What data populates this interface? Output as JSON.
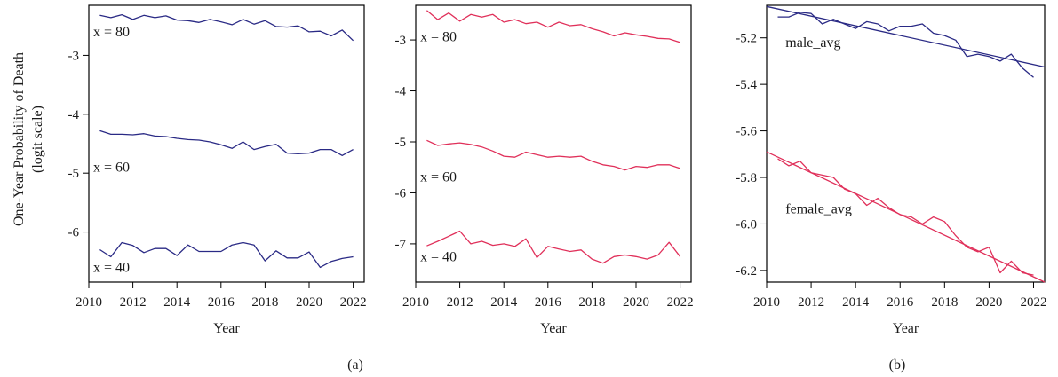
{
  "figure": {
    "ylabel_line1": "One-Year Probability of Death",
    "ylabel_line2": "(logit scale)",
    "caption_a": "(a)",
    "caption_b": "(b)"
  },
  "colors": {
    "male": "#2a2a85",
    "female": "#e0305a",
    "axis": "#000000"
  },
  "chart_data": [
    {
      "type": "line",
      "xlabel": "Year",
      "xlim": [
        2010,
        2022.5
      ],
      "ylim": [
        -6.85,
        -2.15
      ],
      "xticks": [
        2010,
        2012,
        2014,
        2016,
        2018,
        2020,
        2022
      ],
      "yticks": [
        -3,
        -4,
        -5,
        -6
      ],
      "ytick_labels": [
        "-3",
        "-4",
        "-5",
        "-6"
      ],
      "color_key": "male",
      "x": [
        2010.5,
        2011,
        2011.5,
        2012,
        2012.5,
        2013,
        2013.5,
        2014,
        2014.5,
        2015,
        2015.5,
        2016,
        2016.5,
        2017,
        2017.5,
        2018,
        2018.5,
        2019,
        2019.5,
        2020,
        2020.5,
        2021,
        2021.5,
        2022
      ],
      "series": [
        {
          "name": "x = 80",
          "label_x": 2010.2,
          "label_y": -2.6,
          "values": [
            -2.32,
            -2.36,
            -2.31,
            -2.39,
            -2.32,
            -2.36,
            -2.33,
            -2.4,
            -2.41,
            -2.44,
            -2.39,
            -2.43,
            -2.48,
            -2.39,
            -2.47,
            -2.41,
            -2.51,
            -2.52,
            -2.5,
            -2.6,
            -2.59,
            -2.67,
            -2.57,
            -2.75
          ]
        },
        {
          "name": "x = 60",
          "label_x": 2010.2,
          "label_y": -4.9,
          "values": [
            -4.28,
            -4.34,
            -4.34,
            -4.35,
            -4.33,
            -4.37,
            -4.38,
            -4.41,
            -4.43,
            -4.44,
            -4.47,
            -4.52,
            -4.58,
            -4.47,
            -4.6,
            -4.55,
            -4.51,
            -4.66,
            -4.67,
            -4.66,
            -4.6,
            -4.6,
            -4.7,
            -4.6
          ]
        },
        {
          "name": "x = 40",
          "label_x": 2010.2,
          "label_y": -6.6,
          "values": [
            -6.3,
            -6.42,
            -6.18,
            -6.23,
            -6.35,
            -6.28,
            -6.28,
            -6.4,
            -6.22,
            -6.33,
            -6.33,
            -6.33,
            -6.22,
            -6.18,
            -6.22,
            -6.49,
            -6.32,
            -6.44,
            -6.44,
            -6.34,
            -6.6,
            -6.5,
            -6.45,
            -6.42
          ]
        }
      ]
    },
    {
      "type": "line",
      "xlabel": "Year",
      "xlim": [
        2010,
        2022.5
      ],
      "ylim": [
        -7.75,
        -2.32
      ],
      "xticks": [
        2010,
        2012,
        2014,
        2016,
        2018,
        2020,
        2022
      ],
      "yticks": [
        -3,
        -4,
        -5,
        -6,
        -7
      ],
      "ytick_labels": [
        "-3",
        "-4",
        "-5",
        "-6",
        "-7"
      ],
      "color_key": "female",
      "x": [
        2010.5,
        2011,
        2011.5,
        2012,
        2012.5,
        2013,
        2013.5,
        2014,
        2014.5,
        2015,
        2015.5,
        2016,
        2016.5,
        2017,
        2017.5,
        2018,
        2018.5,
        2019,
        2019.5,
        2020,
        2020.5,
        2021,
        2021.5,
        2022
      ],
      "series": [
        {
          "name": "x = 80",
          "label_x": 2010.2,
          "label_y": -2.94,
          "values": [
            -2.42,
            -2.6,
            -2.47,
            -2.63,
            -2.5,
            -2.55,
            -2.5,
            -2.65,
            -2.6,
            -2.68,
            -2.65,
            -2.75,
            -2.65,
            -2.72,
            -2.7,
            -2.78,
            -2.84,
            -2.92,
            -2.86,
            -2.9,
            -2.93,
            -2.97,
            -2.98,
            -3.05
          ]
        },
        {
          "name": "x = 60",
          "label_x": 2010.2,
          "label_y": -5.69,
          "values": [
            -4.97,
            -5.07,
            -5.04,
            -5.02,
            -5.05,
            -5.1,
            -5.18,
            -5.28,
            -5.3,
            -5.2,
            -5.25,
            -5.3,
            -5.28,
            -5.3,
            -5.28,
            -5.38,
            -5.45,
            -5.48,
            -5.55,
            -5.48,
            -5.5,
            -5.45,
            -5.45,
            -5.52
          ]
        },
        {
          "name": "x = 40",
          "label_x": 2010.2,
          "label_y": -7.25,
          "values": [
            -7.04,
            -6.95,
            -6.85,
            -6.75,
            -7.0,
            -6.95,
            -7.03,
            -7.0,
            -7.05,
            -6.9,
            -7.27,
            -7.05,
            -7.1,
            -7.15,
            -7.12,
            -7.3,
            -7.38,
            -7.25,
            -7.22,
            -7.25,
            -7.3,
            -7.22,
            -6.97,
            -7.25
          ]
        }
      ]
    },
    {
      "type": "line",
      "xlabel": "Year",
      "xlim": [
        2010,
        2022.5
      ],
      "ylim": [
        -6.25,
        -5.06
      ],
      "xticks": [
        2010,
        2012,
        2014,
        2016,
        2018,
        2020,
        2022
      ],
      "yticks": [
        -5.2,
        -5.4,
        -5.6,
        -5.8,
        -6.0,
        -6.2
      ],
      "ytick_labels": [
        "-5.2",
        "-5.4",
        "-5.6",
        "-5.8",
        "-6.0",
        "-6.2"
      ],
      "x": [
        2010.5,
        2011,
        2011.5,
        2012,
        2012.5,
        2013,
        2013.5,
        2014,
        2014.5,
        2015,
        2015.5,
        2016,
        2016.5,
        2017,
        2017.5,
        2018,
        2018.5,
        2019,
        2019.5,
        2020,
        2020.5,
        2021,
        2021.5,
        2022
      ],
      "series": [
        {
          "name": "male_avg",
          "color_key": "male",
          "label_x": 2010.85,
          "label_y": -5.22,
          "values": [
            -5.11,
            -5.11,
            -5.09,
            -5.095,
            -5.14,
            -5.12,
            -5.14,
            -5.16,
            -5.13,
            -5.14,
            -5.17,
            -5.15,
            -5.15,
            -5.14,
            -5.18,
            -5.19,
            -5.21,
            -5.28,
            -5.27,
            -5.28,
            -5.3,
            -5.27,
            -5.33,
            -5.37
          ],
          "trend": [
            [
              2010,
              -5.065
            ],
            [
              2022.5,
              -5.325
            ]
          ]
        },
        {
          "name": "female_avg",
          "color_key": "female",
          "label_x": 2010.85,
          "label_y": -5.935,
          "values": [
            -5.72,
            -5.75,
            -5.73,
            -5.78,
            -5.79,
            -5.8,
            -5.85,
            -5.87,
            -5.92,
            -5.89,
            -5.93,
            -5.96,
            -5.97,
            -6.0,
            -5.97,
            -5.99,
            -6.05,
            -6.1,
            -6.12,
            -6.1,
            -6.21,
            -6.16,
            -6.21,
            -6.22
          ],
          "trend": [
            [
              2010,
              -5.69
            ],
            [
              2022.5,
              -6.25
            ]
          ]
        }
      ]
    }
  ]
}
